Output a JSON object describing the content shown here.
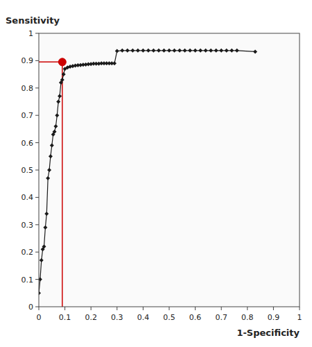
{
  "chart_data": {
    "type": "line",
    "xlabel": "1-Specificity",
    "ylabel": "Sensitivity",
    "x": [
      0.0,
      0.005,
      0.01,
      0.015,
      0.02,
      0.025,
      0.03,
      0.035,
      0.04,
      0.045,
      0.05,
      0.055,
      0.06,
      0.065,
      0.07,
      0.075,
      0.08,
      0.085,
      0.09,
      0.095,
      0.1,
      0.11,
      0.12,
      0.13,
      0.14,
      0.15,
      0.16,
      0.17,
      0.18,
      0.19,
      0.2,
      0.21,
      0.22,
      0.23,
      0.24,
      0.25,
      0.26,
      0.27,
      0.28,
      0.29,
      0.3,
      0.32,
      0.34,
      0.36,
      0.38,
      0.4,
      0.42,
      0.44,
      0.46,
      0.48,
      0.5,
      0.52,
      0.54,
      0.56,
      0.58,
      0.6,
      0.62,
      0.64,
      0.66,
      0.68,
      0.7,
      0.72,
      0.74,
      0.76,
      0.83
    ],
    "series": [
      {
        "color": "#1a1a1a",
        "marker": "diamond",
        "values": [
          0.05,
          0.1,
          0.17,
          0.21,
          0.22,
          0.29,
          0.34,
          0.47,
          0.5,
          0.55,
          0.59,
          0.63,
          0.64,
          0.66,
          0.7,
          0.75,
          0.77,
          0.82,
          0.83,
          0.85,
          0.87,
          0.875,
          0.878,
          0.88,
          0.882,
          0.883,
          0.884,
          0.885,
          0.886,
          0.887,
          0.888,
          0.889,
          0.889,
          0.889,
          0.89,
          0.89,
          0.89,
          0.89,
          0.89,
          0.89,
          0.935,
          0.937,
          0.937,
          0.937,
          0.937,
          0.937,
          0.937,
          0.937,
          0.937,
          0.937,
          0.937,
          0.937,
          0.937,
          0.937,
          0.937,
          0.937,
          0.937,
          0.937,
          0.937,
          0.937,
          0.937,
          0.937,
          0.937,
          0.937,
          0.933
        ]
      }
    ],
    "cutoff": {
      "x": 0.09,
      "y": 0.895,
      "color": "#CC0000"
    },
    "xlim": [
      0,
      1
    ],
    "ylim": [
      0,
      1
    ],
    "xticks": [
      0,
      0.1,
      0.2,
      0.3,
      0.4,
      0.5,
      0.6,
      0.7,
      0.8,
      0.9,
      1
    ],
    "yticks": [
      0,
      0.1,
      0.2,
      0.3,
      0.4,
      0.5,
      0.6,
      0.7,
      0.8,
      0.9,
      1
    ],
    "grid": false
  }
}
